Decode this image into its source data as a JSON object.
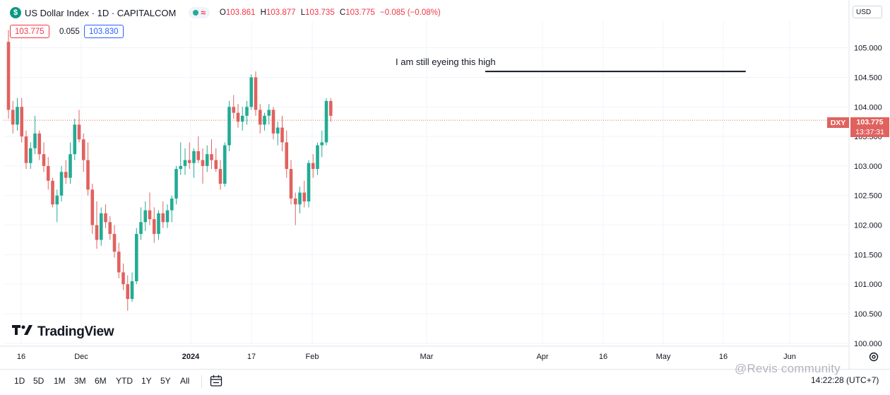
{
  "header": {
    "symbol_initial": "$",
    "title": "US Dollar Index · 1D · CAPITALCOM",
    "indicator_glyph": "≈",
    "ohlc": {
      "o_key": "O",
      "o_val": "103.861",
      "h_key": "H",
      "h_val": "103.877",
      "l_key": "L",
      "l_val": "103.735",
      "c_key": "C",
      "c_val": "103.775",
      "change": "−0.085 (−0.08%)"
    }
  },
  "price_boxes": {
    "bid": "103.775",
    "spread": "0.055",
    "ask": "103.830"
  },
  "currency": "USD",
  "annotation": "I am still eyeing this high",
  "price_tag": {
    "symbol": "DXY",
    "price": "103.775",
    "countdown": "13:37:31"
  },
  "logo": {
    "mark": "17",
    "text": "TradingView"
  },
  "timeframes": [
    "1D",
    "5D",
    "1M",
    "3M",
    "6M",
    "YTD",
    "1Y",
    "5Y",
    "All"
  ],
  "clock": "14:22:28 (UTC+7)",
  "watermark": "@Revis community",
  "colors": {
    "up": "#22ab94",
    "down": "#e0625f",
    "line": "#131722",
    "grid": "#f0f3fa",
    "price_line": "#e07050"
  },
  "chart_data": {
    "type": "candlestick",
    "title": "US Dollar Index · 1D · CAPITALCOM",
    "ylim": [
      99.95,
      105.45
    ],
    "y_ticks": [
      100.0,
      100.5,
      101.0,
      101.5,
      102.0,
      102.5,
      103.0,
      103.5,
      104.0,
      104.5,
      105.0
    ],
    "y_tick_labels": [
      "100.000",
      "100.500",
      "101.000",
      "101.500",
      "102.000",
      "102.500",
      "103.000",
      "103.500",
      "104.000",
      "104.500",
      "105.000"
    ],
    "x_tick_labels": [
      "16",
      "Dec",
      "2024",
      "17",
      "Feb",
      "Mar",
      "Apr",
      "16",
      "May",
      "16",
      "Jun"
    ],
    "last_price": 103.775,
    "horizontal_line": {
      "level": 104.6,
      "from_bar": 108,
      "to_bar": 167
    },
    "series": [
      {
        "values": [
          [
            105.1,
            105.3,
            103.8,
            103.95
          ],
          [
            103.95,
            104.1,
            103.55,
            103.7
          ],
          [
            103.7,
            104.15,
            103.6,
            104.0
          ],
          [
            104.0,
            104.15,
            103.4,
            103.5
          ],
          [
            103.5,
            103.6,
            102.95,
            103.05
          ],
          [
            103.05,
            103.4,
            102.95,
            103.3
          ],
          [
            103.3,
            103.85,
            103.2,
            103.55
          ],
          [
            103.55,
            103.6,
            103.1,
            103.2
          ],
          [
            103.2,
            103.4,
            102.9,
            103.0
          ],
          [
            103.0,
            103.15,
            102.6,
            102.75
          ],
          [
            102.75,
            102.8,
            102.3,
            102.35
          ],
          [
            102.35,
            102.6,
            102.05,
            102.5
          ],
          [
            102.5,
            103.0,
            102.4,
            102.9
          ],
          [
            102.9,
            103.1,
            102.7,
            102.8
          ],
          [
            102.8,
            103.4,
            102.7,
            103.2
          ],
          [
            103.2,
            103.8,
            103.1,
            103.7
          ],
          [
            103.7,
            103.95,
            103.4,
            103.45
          ],
          [
            103.45,
            103.55,
            102.9,
            103.1
          ],
          [
            103.1,
            103.4,
            102.5,
            102.6
          ],
          [
            102.6,
            102.7,
            101.85,
            102.0
          ],
          [
            102.0,
            102.4,
            101.6,
            101.75
          ],
          [
            101.75,
            102.3,
            101.65,
            102.2
          ],
          [
            102.2,
            102.35,
            101.95,
            102.05
          ],
          [
            102.05,
            102.15,
            101.75,
            101.85
          ],
          [
            101.85,
            102.0,
            101.45,
            101.55
          ],
          [
            101.55,
            101.7,
            101.1,
            101.2
          ],
          [
            101.2,
            101.35,
            100.9,
            101.0
          ],
          [
            101.0,
            101.15,
            100.55,
            100.75
          ],
          [
            100.75,
            101.2,
            100.7,
            101.05
          ],
          [
            101.05,
            101.95,
            101.0,
            101.85
          ],
          [
            101.85,
            102.3,
            101.75,
            102.05
          ],
          [
            102.05,
            102.4,
            101.9,
            102.25
          ],
          [
            102.25,
            102.55,
            102.0,
            102.1
          ],
          [
            102.1,
            102.3,
            101.7,
            101.85
          ],
          [
            101.85,
            102.25,
            101.75,
            102.2
          ],
          [
            102.2,
            102.4,
            101.95,
            102.05
          ],
          [
            102.05,
            102.35,
            101.95,
            102.25
          ],
          [
            102.25,
            102.5,
            102.05,
            102.45
          ],
          [
            102.45,
            103.0,
            102.35,
            102.95
          ],
          [
            102.95,
            103.4,
            102.85,
            103.0
          ],
          [
            103.0,
            103.3,
            102.85,
            103.1
          ],
          [
            103.1,
            103.4,
            102.95,
            103.05
          ],
          [
            103.05,
            103.3,
            102.8,
            103.25
          ],
          [
            103.25,
            103.5,
            103.05,
            103.1
          ],
          [
            103.1,
            103.3,
            102.7,
            103.0
          ],
          [
            103.0,
            103.35,
            102.9,
            103.2
          ],
          [
            103.2,
            103.45,
            102.95,
            103.1
          ],
          [
            103.1,
            103.3,
            102.9,
            102.95
          ],
          [
            102.95,
            103.1,
            102.6,
            102.7
          ],
          [
            102.7,
            103.4,
            102.65,
            103.35
          ],
          [
            103.35,
            104.1,
            103.25,
            104.0
          ],
          [
            104.0,
            104.2,
            103.8,
            103.9
          ],
          [
            103.9,
            104.05,
            103.65,
            103.75
          ],
          [
            103.75,
            104.0,
            103.6,
            103.85
          ],
          [
            103.85,
            104.1,
            103.7,
            104.0
          ],
          [
            104.0,
            104.55,
            103.95,
            104.5
          ],
          [
            104.5,
            104.6,
            103.85,
            103.95
          ],
          [
            103.95,
            104.05,
            103.55,
            103.7
          ],
          [
            103.7,
            103.9,
            103.6,
            103.85
          ],
          [
            103.85,
            104.05,
            103.7,
            103.95
          ],
          [
            103.95,
            104.0,
            103.45,
            103.55
          ],
          [
            103.55,
            103.75,
            103.35,
            103.65
          ],
          [
            103.65,
            103.85,
            103.25,
            103.4
          ],
          [
            103.4,
            103.6,
            102.8,
            102.95
          ],
          [
            102.95,
            103.1,
            102.35,
            102.45
          ],
          [
            102.45,
            102.55,
            102.0,
            102.35
          ],
          [
            102.35,
            102.65,
            102.2,
            102.55
          ],
          [
            102.55,
            102.75,
            102.3,
            102.4
          ],
          [
            102.4,
            103.1,
            102.3,
            103.05
          ],
          [
            103.05,
            103.2,
            102.8,
            102.95
          ],
          [
            102.95,
            103.4,
            102.85,
            103.35
          ],
          [
            103.35,
            103.6,
            103.15,
            103.4
          ],
          [
            103.4,
            104.15,
            103.35,
            104.1
          ],
          [
            104.1,
            104.15,
            103.75,
            103.85
          ]
        ]
      }
    ]
  }
}
